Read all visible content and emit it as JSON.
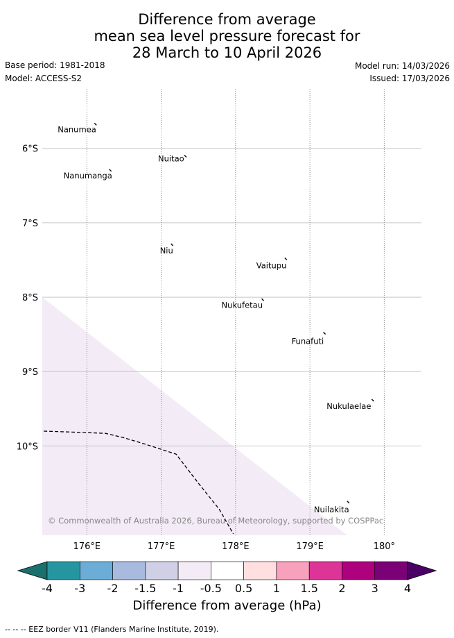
{
  "title": {
    "line1": "Difference from average",
    "line2": "mean sea level pressure forecast for",
    "line3": "28 March to 10 April 2026"
  },
  "meta": {
    "base_period": "Base period: 1981-2018",
    "model": "Model: ACCESS-S2",
    "model_run": "Model run: 14/03/2026",
    "issued": "Issued: 17/03/2026"
  },
  "map": {
    "lon_range": [
      175.4,
      180.5
    ],
    "lat_range": [
      -11.2,
      -5.2
    ],
    "lon_ticks": [
      {
        "value": 176,
        "label": "176°E"
      },
      {
        "value": 177,
        "label": "177°E"
      },
      {
        "value": 178,
        "label": "178°E"
      },
      {
        "value": 179,
        "label": "179°E"
      },
      {
        "value": 180,
        "label": "180°"
      }
    ],
    "lat_ticks": [
      {
        "value": -6,
        "label": "6°S"
      },
      {
        "value": -7,
        "label": "7°S"
      },
      {
        "value": -8,
        "label": "8°S"
      },
      {
        "value": -9,
        "label": "9°S"
      },
      {
        "value": -10,
        "label": "10°S"
      }
    ],
    "islands": [
      {
        "name": "Nanumea",
        "lon": 176.12,
        "lat": -5.67
      },
      {
        "name": "Nuitao",
        "lon": 177.33,
        "lat": -6.1
      },
      {
        "name": "Nanumanga",
        "lon": 176.32,
        "lat": -6.29
      },
      {
        "name": "Niu",
        "lon": 177.15,
        "lat": -7.29
      },
      {
        "name": "Vaitupu",
        "lon": 178.68,
        "lat": -7.48
      },
      {
        "name": "Nukufetau",
        "lon": 178.37,
        "lat": -8.03
      },
      {
        "name": "Funafuti",
        "lon": 179.2,
        "lat": -8.48
      },
      {
        "name": "Nukulaelae",
        "lon": 179.85,
        "lat": -9.38
      },
      {
        "name": "Nuilakita",
        "lon": 179.52,
        "lat": -10.75
      }
    ],
    "anomaly_region": {
      "category": "-0.5 to -1",
      "color": "#f3ebf6",
      "polygon": [
        [
          175.4,
          -8.0
        ],
        [
          175.4,
          -11.2
        ],
        [
          179.5,
          -11.2
        ]
      ]
    },
    "eez_border": [
      [
        175.42,
        -9.8
      ],
      [
        175.7,
        -9.81
      ],
      [
        176.25,
        -9.83
      ],
      [
        176.5,
        -9.89
      ],
      [
        176.8,
        -9.98
      ],
      [
        177.2,
        -10.11
      ],
      [
        177.5,
        -10.5
      ],
      [
        177.78,
        -10.85
      ],
      [
        177.97,
        -11.18
      ]
    ],
    "copyright": "© Commonwealth of Australia 2026, Bureau of Meteorology, supported by COSPPac"
  },
  "colorbar": {
    "colors": [
      "#19706e",
      "#2596a0",
      "#6badd6",
      "#a8bbdf",
      "#cfd0e6",
      "#f3ebf6",
      "#ffffff",
      "#ffdfe0",
      "#f7a1bc",
      "#dd3497",
      "#ad017e",
      "#7b0176",
      "#4b0066"
    ],
    "ticks": [
      "-4",
      "-3",
      "-2",
      "-1.5",
      "-1",
      "-0.5",
      "0.5",
      "1",
      "1.5",
      "2",
      "3",
      "4"
    ],
    "label": "Difference from average (hPa)"
  },
  "footer": "-- -- -- EEZ border V11 (Flanders Marine Institute, 2019)."
}
